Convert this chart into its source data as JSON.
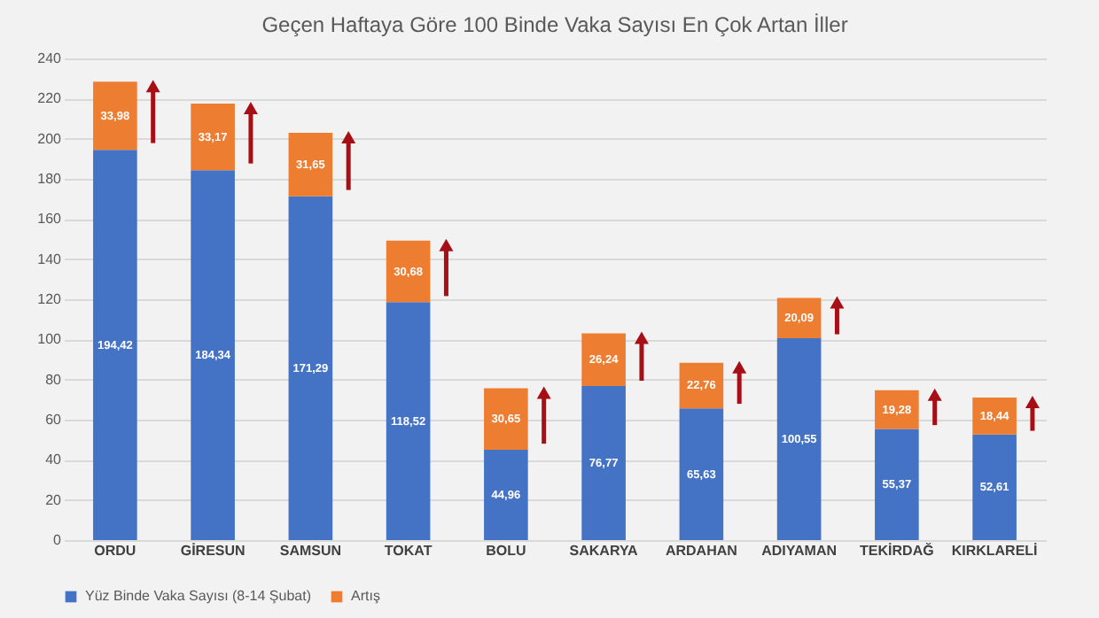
{
  "chart_data": {
    "type": "bar",
    "title": "Geçen Haftaya Göre 100 Binde Vaka Sayısı En Çok Artan İller",
    "categories": [
      "ORDU",
      "GİRESUN",
      "SAMSUN",
      "TOKAT",
      "BOLU",
      "SAKARYA",
      "ARDAHAN",
      "ADIYAMAN",
      "TEKİRDAĞ",
      "KIRKLARELİ"
    ],
    "stacked": true,
    "series": [
      {
        "name": "Yüz Binde Vaka Sayısı (8-14 Şubat)",
        "color": "#4472c4",
        "values": [
          194.42,
          184.34,
          171.29,
          118.52,
          44.96,
          76.77,
          65.63,
          100.55,
          55.37,
          52.61
        ],
        "value_labels": [
          "194,42",
          "184,34",
          "171,29",
          "118,52",
          "44,96",
          "76,77",
          "65,63",
          "100,55",
          "55,37",
          "52,61"
        ]
      },
      {
        "name": "Artış",
        "color": "#ed7d31",
        "values": [
          33.98,
          33.17,
          31.65,
          30.68,
          30.65,
          26.24,
          22.76,
          20.09,
          19.28,
          18.44
        ],
        "value_labels": [
          "33,98",
          "33,17",
          "31,65",
          "30,68",
          "30,65",
          "26,24",
          "22,76",
          "20,09",
          "19,28",
          "18,44"
        ]
      }
    ],
    "ylim": [
      0,
      240
    ],
    "yticks": [
      0,
      20,
      40,
      60,
      80,
      100,
      120,
      140,
      160,
      180,
      200,
      220,
      240
    ],
    "grid": "y",
    "legend": "bottom"
  }
}
